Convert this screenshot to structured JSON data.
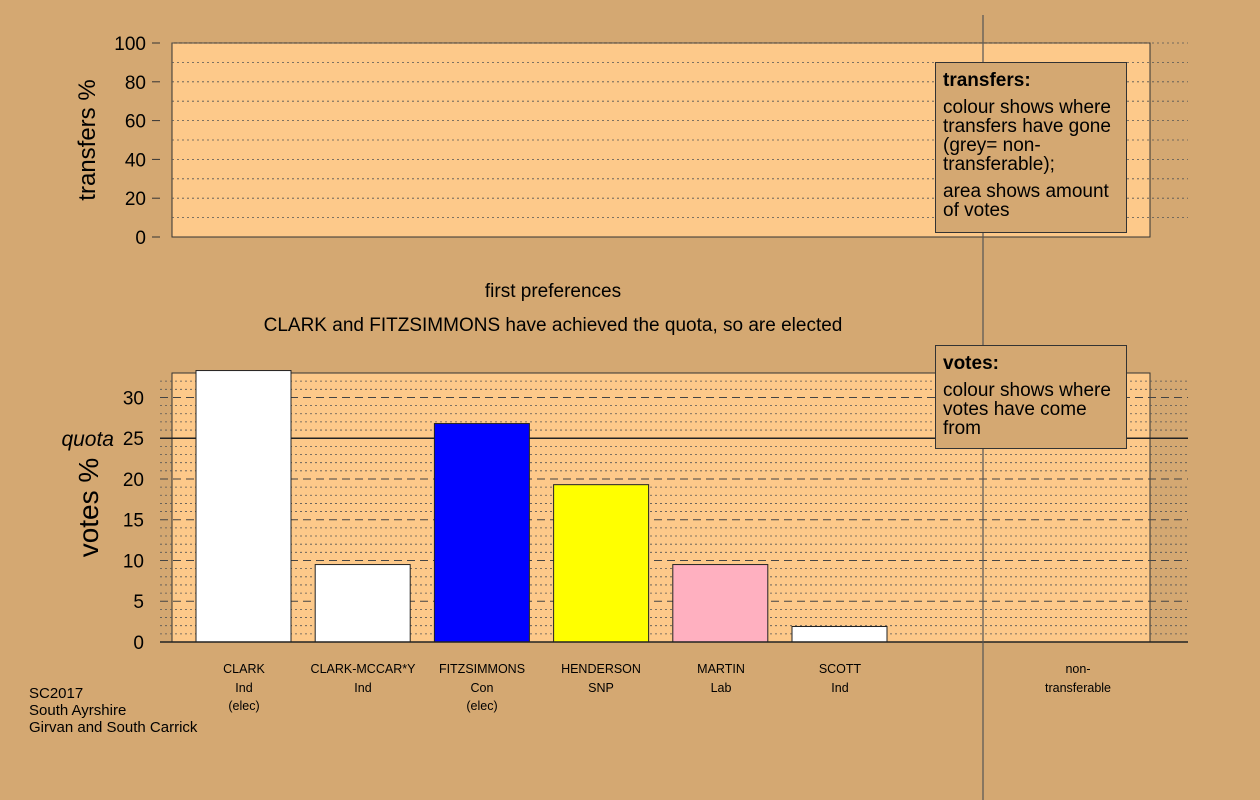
{
  "headings": {
    "first_preferences": "first preferences",
    "elected_message": "CLARK and FITZSIMMONS have achieved the quota, so are elected"
  },
  "legends": {
    "transfers": {
      "title": "transfers:",
      "body1": "colour shows where transfers have gone (grey= non-transferable);",
      "body2": "area shows amount of votes"
    },
    "votes": {
      "title": "votes:",
      "body1": "colour shows where votes have come from"
    }
  },
  "footer": {
    "line1": "SC2017",
    "line2": "South Ayrshire",
    "line3": "Girvan and South Carrick"
  },
  "candidates": [
    {
      "name": "CLARK",
      "party": "Ind",
      "note": "(elec)"
    },
    {
      "name": "CLARK-MCCAR*Y",
      "party": "Ind",
      "note": ""
    },
    {
      "name": "FITZSIMMONS",
      "party": "Con",
      "note": "(elec)"
    },
    {
      "name": "HENDERSON",
      "party": "SNP",
      "note": ""
    },
    {
      "name": "MARTIN",
      "party": "Lab",
      "note": ""
    },
    {
      "name": "SCOTT",
      "party": "Ind",
      "note": ""
    }
  ],
  "nontransferable": {
    "line1": "non-",
    "line2": "transferable"
  },
  "colors": {
    "background": "#d4a872",
    "plot_fill": "#fdc98a",
    "Ind": "#ffffff",
    "Con": "#0000ff",
    "SNP": "#ffff00",
    "Lab": "#ffb0c0"
  },
  "chart_data": [
    {
      "type": "bar",
      "title": "",
      "ylabel": "transfers %",
      "ylim": [
        0,
        100
      ],
      "yticks": [
        0,
        20,
        40,
        60,
        80,
        100
      ],
      "values": []
    },
    {
      "type": "bar",
      "title": "first preferences",
      "ylabel": "votes %",
      "ylim": [
        0,
        33
      ],
      "yticks": [
        0,
        5,
        10,
        15,
        20,
        25,
        30
      ],
      "quota": 25,
      "quota_label": "quota",
      "categories": [
        "CLARK",
        "CLARK-MCCAR*Y",
        "FITZSIMMONS",
        "HENDERSON",
        "MARTIN",
        "SCOTT"
      ],
      "values": [
        33.3,
        9.5,
        26.8,
        19.3,
        9.5,
        1.9
      ],
      "bar_colors": [
        "#ffffff",
        "#ffffff",
        "#0000ff",
        "#ffff00",
        "#ffb0c0",
        "#ffffff"
      ]
    }
  ]
}
